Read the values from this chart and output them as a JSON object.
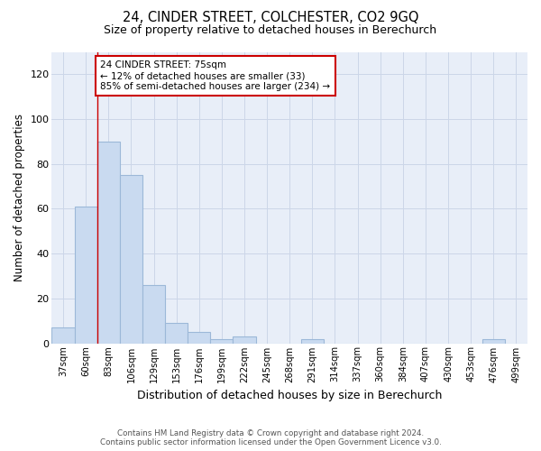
{
  "title": "24, CINDER STREET, COLCHESTER, CO2 9GQ",
  "subtitle": "Size of property relative to detached houses in Berechurch",
  "xlabel": "Distribution of detached houses by size in Berechurch",
  "ylabel": "Number of detached properties",
  "categories": [
    "37sqm",
    "60sqm",
    "83sqm",
    "106sqm",
    "129sqm",
    "153sqm",
    "176sqm",
    "199sqm",
    "222sqm",
    "245sqm",
    "268sqm",
    "291sqm",
    "314sqm",
    "337sqm",
    "360sqm",
    "384sqm",
    "407sqm",
    "430sqm",
    "453sqm",
    "476sqm",
    "499sqm"
  ],
  "values": [
    7,
    61,
    90,
    75,
    26,
    9,
    5,
    2,
    3,
    0,
    0,
    2,
    0,
    0,
    0,
    0,
    0,
    0,
    0,
    2,
    0
  ],
  "bar_color": "#c9daf0",
  "bar_edge_color": "#9cb8d8",
  "grid_color": "#ccd6e8",
  "ylim": [
    0,
    130
  ],
  "yticks": [
    0,
    20,
    40,
    60,
    80,
    100,
    120
  ],
  "property_line_color": "#cc0000",
  "annotation_text": "24 CINDER STREET: 75sqm\n← 12% of detached houses are smaller (33)\n85% of semi-detached houses are larger (234) →",
  "annotation_box_color": "#ffffff",
  "annotation_box_edge_color": "#cc0000",
  "footer_line1": "Contains HM Land Registry data © Crown copyright and database right 2024.",
  "footer_line2": "Contains public sector information licensed under the Open Government Licence v3.0.",
  "background_color": "#e8eef8"
}
